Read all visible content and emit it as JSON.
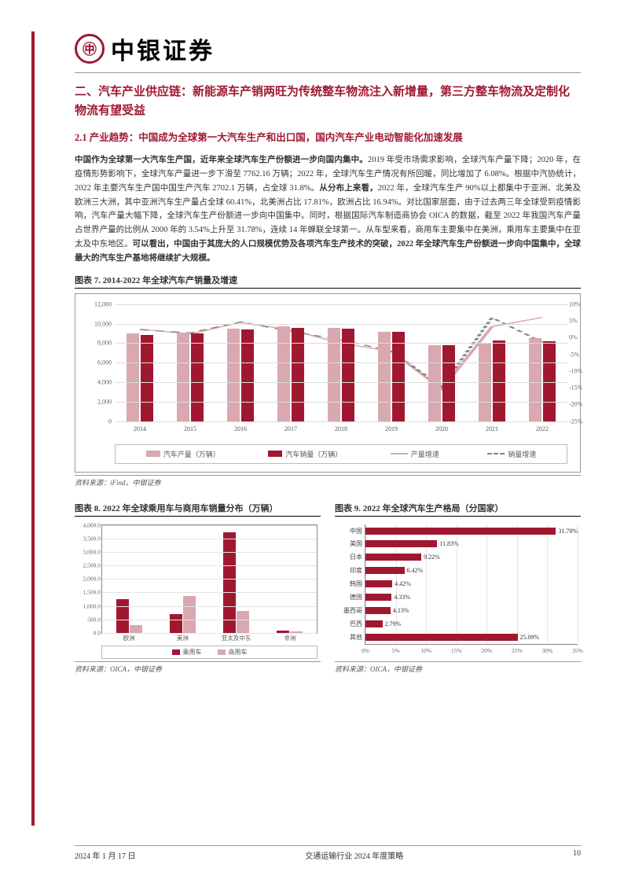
{
  "header": {
    "company": "中银证券",
    "logo_char": "㊥"
  },
  "section_title": "二、汽车产业供应链：新能源车产销两旺为传统整车物流注入新增量，第三方整车物流及定制化物流有望受益",
  "subsection_title": "2.1 产业趋势：中国成为全球第一大汽车生产和出口国，国内汽车产业电动智能化加速发展",
  "body_p1_bold1": "中国作为全球第一大汽车生产国，近年来全球汽车生产份额进一步向国内集中。",
  "body_p1_t1": "2019 年受市场需求影响，全球汽车产量下降；2020 年，在疫情形势影响下，全球汽车产量进一步下滑至 7762.16 万辆；2022 年，全球汽车生产情况有所回暖，同比增加了 6.08%。根据中汽协统计，2022 年主要汽车生产国中国生产汽车 2702.1 万辆，占全球 31.8%。",
  "body_p1_bold2": "从分布上来看，",
  "body_p1_t2": "2022 年，全球汽车生产 90%以上都集中于亚洲、北美及欧洲三大洲，其中亚洲汽车生产量占全球 60.41%，北美洲占比 17.81%，欧洲占比 16.94%。对比国家层面，由于过去两三年全球受到疫情影响，汽车产量大幅下降，全球汽车生产份额进一步向中国集中。同时，根据国际汽车制造商协会 OICA 的数据，截至 2022 年我国汽车产量占世界产量的比例从 2000 年的 3.54%上升至 31.78%，连续 14 年蝉联全球第一。从车型来看，商用车主要集中在美洲，乘用车主要集中在亚太及中东地区。",
  "body_p1_bold3": "可以看出，中国由于其庞大的人口规模优势及各项汽车生产技术的突破，2022 年全球汽车生产份额进一步向中国集中，全球最大的汽车生产基地将继续扩大规模。",
  "chart7": {
    "title": "图表 7. 2014-2022 年全球汽车产销量及增速",
    "source": "资料来源：iFind，中银证券",
    "years": [
      "2014",
      "2015",
      "2016",
      "2017",
      "2018",
      "2019",
      "2020",
      "2021",
      "2022"
    ],
    "production": [
      8975,
      9078,
      9498,
      9730,
      9563,
      9179,
      7762,
      8015,
      8502
    ],
    "sales": [
      8837,
      8968,
      9386,
      9567,
      9506,
      9130,
      7797,
      8268,
      8163
    ],
    "prod_growth": [
      2.6,
      1.1,
      4.6,
      2.4,
      -1.7,
      -4.0,
      -15.4,
      3.3,
      6.1
    ],
    "sales_growth": [
      2.4,
      1.5,
      4.7,
      1.9,
      -0.6,
      -4.0,
      -14.6,
      6.0,
      -1.3
    ],
    "y_left": {
      "max": 12000,
      "ticks": [
        0,
        2000,
        4000,
        6000,
        8000,
        10000,
        12000
      ]
    },
    "y_right": {
      "min": -25,
      "max": 10,
      "ticks": [
        10,
        5,
        0,
        -5,
        -10,
        -15,
        -20,
        -25
      ]
    },
    "legend": [
      "汽车产量（万辆）",
      "汽车销量（万辆）",
      "产量增速",
      "销量增速"
    ],
    "colors": {
      "bar1": "#d9a8b0",
      "bar2": "#a01830",
      "line1": "#d9a8b0",
      "line2": "#888888"
    }
  },
  "chart8": {
    "title": "图表 8. 2022 年全球乘用车与商用车销量分布（万辆）",
    "source": "资料来源：OICA，中银证券",
    "regions": [
      "欧洲",
      "美洲",
      "亚太及中东",
      "非洲"
    ],
    "passenger": [
      1250,
      680,
      3720,
      85
    ],
    "commercial": [
      280,
      1380,
      800,
      40
    ],
    "y": {
      "max": 4000,
      "ticks": [
        0.0,
        500.0,
        1000.0,
        1500.0,
        2000.0,
        2500.0,
        3000.0,
        3500.0,
        4000.0
      ],
      "labels": [
        "0.0",
        "500.0",
        "1,000.0",
        "1,500.0",
        "2,000.0",
        "2,500.0",
        "3,000.0",
        "3,500.0",
        "4,000.0"
      ]
    },
    "legend": [
      "乘用车",
      "商用车"
    ],
    "colors": {
      "b1": "#a01830",
      "b2": "#d9a8b0"
    }
  },
  "chart9": {
    "title": "图表 9. 2022 年全球汽车生产格局（分国家）",
    "source": "资料来源：OICA，中银证券",
    "countries": [
      "中国",
      "美国",
      "日本",
      "印度",
      "韩国",
      "德国",
      "墨西哥",
      "巴西",
      "其他"
    ],
    "values": [
      31.78,
      11.83,
      9.22,
      6.42,
      4.42,
      4.33,
      4.13,
      2.79,
      25.09
    ],
    "x": {
      "max": 35,
      "ticks": [
        0,
        5,
        10,
        15,
        20,
        25,
        30,
        35
      ],
      "labels": [
        "0%",
        "5%",
        "10%",
        "15%",
        "20%",
        "25%",
        "30%",
        "35%"
      ]
    },
    "color": "#a01830"
  },
  "footer": {
    "date": "2024 年 1 月 17 日",
    "doc": "交通运输行业 2024 年度策略",
    "page": "10"
  }
}
